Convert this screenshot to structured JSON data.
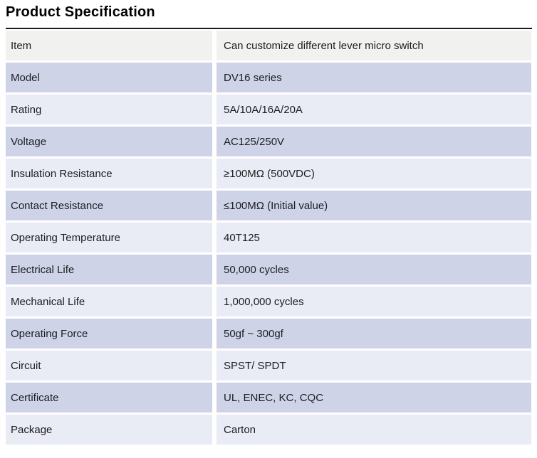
{
  "page": {
    "title": "Product Specification"
  },
  "table": {
    "rows": [
      {
        "label": "Item",
        "value": "Can customize different lever micro switch"
      },
      {
        "label": "Model",
        "value": "DV16 series"
      },
      {
        "label": "Rating",
        "value": "5A/10A/16A/20A"
      },
      {
        "label": "Voltage",
        "value": "AC125/250V"
      },
      {
        "label": "Insulation Resistance",
        "value": "≥100MΩ (500VDC)"
      },
      {
        "label": "Contact Resistance",
        "value": "≤100MΩ (Initial value)"
      },
      {
        "label": "Operating Temperature",
        "value": "40T125"
      },
      {
        "label": "Electrical Life",
        "value": "50,000 cycles"
      },
      {
        "label": "Mechanical Life",
        "value": "1,000,000 cycles"
      },
      {
        "label": "Operating Force",
        "value": "50gf ~ 300gf"
      },
      {
        "label": "Circuit",
        "value": "SPST/ SPDT"
      },
      {
        "label": "Certificate",
        "value": "UL, ENEC, KC, CQC"
      },
      {
        "label": "Package",
        "value": "Carton"
      }
    ]
  },
  "colors": {
    "page_bg": "#ffffff",
    "title_text": "#000000",
    "rule": "#1a1a1a",
    "row_header_bg": "#f1f1ef",
    "row_alt_bg": "#ced3e8",
    "row_base_bg": "#e9ebf5",
    "cell_text": "#1d1d1f"
  }
}
